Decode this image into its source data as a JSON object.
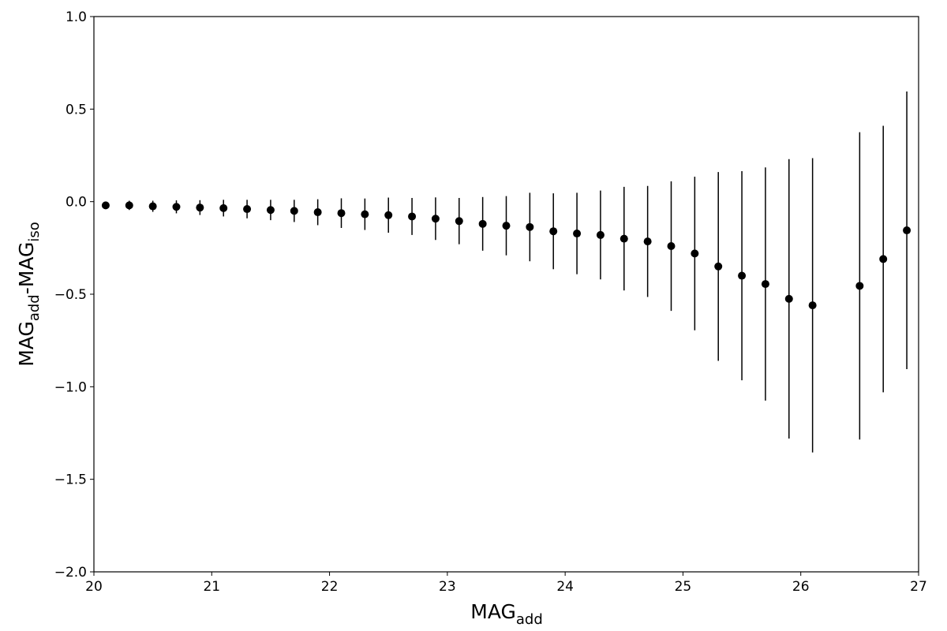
{
  "chart_data": {
    "type": "errorbar",
    "x_label": [
      "MAG",
      "add"
    ],
    "y_label": [
      "MAG",
      "add",
      "-MAG",
      "iso"
    ],
    "x": [
      20.1,
      20.3,
      20.5,
      20.7,
      20.9,
      21.1,
      21.3,
      21.5,
      21.7,
      21.9,
      22.1,
      22.3,
      22.5,
      22.7,
      22.9,
      23.1,
      23.3,
      23.5,
      23.7,
      23.9,
      24.1,
      24.3,
      24.5,
      24.7,
      24.9,
      25.1,
      25.3,
      25.5,
      25.7,
      25.9,
      26.1,
      26.5,
      26.7,
      26.9
    ],
    "values": [
      -0.02,
      -0.02,
      -0.025,
      -0.028,
      -0.032,
      -0.035,
      -0.04,
      -0.045,
      -0.05,
      -0.057,
      -0.062,
      -0.068,
      -0.073,
      -0.08,
      -0.092,
      -0.105,
      -0.12,
      -0.13,
      -0.137,
      -0.16,
      -0.172,
      -0.18,
      -0.2,
      -0.215,
      -0.24,
      -0.28,
      -0.35,
      -0.4,
      -0.445,
      -0.525,
      -0.56,
      -0.455,
      -0.31,
      -0.155
    ],
    "errors": [
      0.02,
      0.025,
      0.03,
      0.035,
      0.04,
      0.045,
      0.05,
      0.055,
      0.06,
      0.07,
      0.08,
      0.085,
      0.095,
      0.1,
      0.115,
      0.125,
      0.145,
      0.16,
      0.185,
      0.205,
      0.22,
      0.24,
      0.28,
      0.3,
      0.35,
      0.415,
      0.51,
      0.565,
      0.63,
      0.755,
      0.795,
      0.83,
      0.72,
      0.75
    ],
    "color": "#000000",
    "xlim": [
      20,
      27
    ],
    "xticks": [
      20,
      21,
      22,
      23,
      24,
      25,
      26,
      27
    ],
    "ylim": [
      -2.0,
      1.0
    ],
    "yticks": [
      {
        "value": 1.0,
        "label": "1.0"
      },
      {
        "value": 0.5,
        "label": "0.5"
      },
      {
        "value": 0.0,
        "label": "0.0"
      },
      {
        "value": -0.5,
        "label": "−0.5"
      },
      {
        "value": -1.0,
        "label": "−1.0"
      },
      {
        "value": -1.5,
        "label": "−1.5"
      },
      {
        "value": -2.0,
        "label": "−2.0"
      }
    ]
  }
}
